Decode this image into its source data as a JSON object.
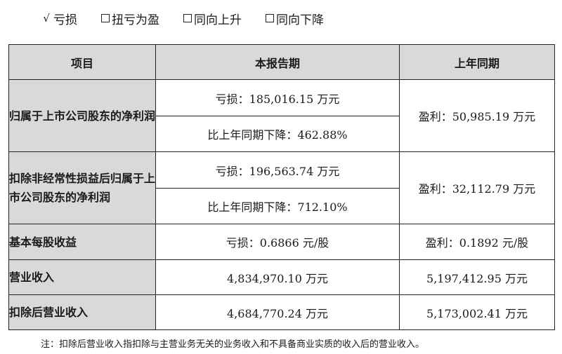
{
  "options": [
    {
      "mark": "√",
      "label": "亏损",
      "checked": true
    },
    {
      "mark": "",
      "label": "扭亏为盈",
      "checked": false
    },
    {
      "mark": "",
      "label": "同向上升",
      "checked": false
    },
    {
      "mark": "",
      "label": "同向下降",
      "checked": false
    }
  ],
  "table": {
    "headers": [
      "项目",
      "本报告期",
      "上年同期"
    ],
    "rows": [
      {
        "label": "归属于上市公司股东的净利润",
        "current": [
          "亏损：185,016.15 万元",
          "比上年同期下降：462.88%"
        ],
        "prior": "盈利：50,985.19 万元"
      },
      {
        "label": "扣除非经常性损益后归属于上市公司股东的净利润",
        "current": [
          "亏损：196,563.74 万元",
          "比上年同期下降：712.10%"
        ],
        "prior": "盈利：32,112.79 万元"
      },
      {
        "label": "基本每股收益",
        "current": [
          "亏损：0.6866 元/股"
        ],
        "prior": "盈利：0.1892 元/股"
      },
      {
        "label": "营业收入",
        "current": [
          "4,834,970.10 万元"
        ],
        "prior": "5,197,412.95 万元"
      },
      {
        "label": "扣除后营业收入",
        "current": [
          "4,684,770.24 万元"
        ],
        "prior": "5,173,002.41 万元"
      }
    ]
  },
  "note": "注：扣除后营业收入指扣除与主营业务无关的业务收入和不具备商业实质的收入后的营业收入。"
}
